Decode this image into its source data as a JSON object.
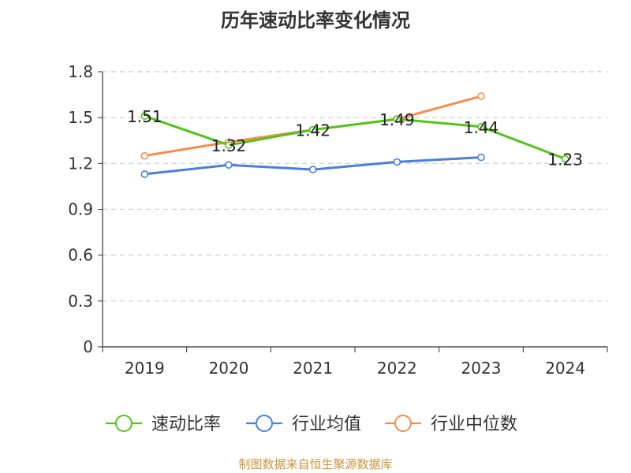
{
  "chart_data": {
    "type": "line",
    "title": "历年速动比率变化情况",
    "categories": [
      "2019",
      "2020",
      "2021",
      "2022",
      "2023",
      "2024"
    ],
    "ylim": [
      0,
      1.8
    ],
    "yticks": [
      "0",
      "0.3",
      "0.6",
      "0.9",
      "1.2",
      "1.5",
      "1.8"
    ],
    "grid": true,
    "legend_position": "bottom",
    "series": [
      {
        "name": "速动比率",
        "color": "#52c41a",
        "values": [
          1.51,
          1.32,
          1.42,
          1.49,
          1.44,
          1.23
        ],
        "labels": [
          "1.51",
          "1.32",
          "1.42",
          "1.49",
          "1.44",
          "1.23"
        ]
      },
      {
        "name": "行业均值",
        "color": "#4a7fdc",
        "values": [
          1.13,
          1.19,
          1.16,
          1.21,
          1.24,
          null
        ]
      },
      {
        "name": "行业中位数",
        "color": "#f58c50",
        "values": [
          1.25,
          1.34,
          1.42,
          1.49,
          1.64,
          null
        ]
      }
    ]
  },
  "source": "制图数据来自恒生聚源数据库"
}
